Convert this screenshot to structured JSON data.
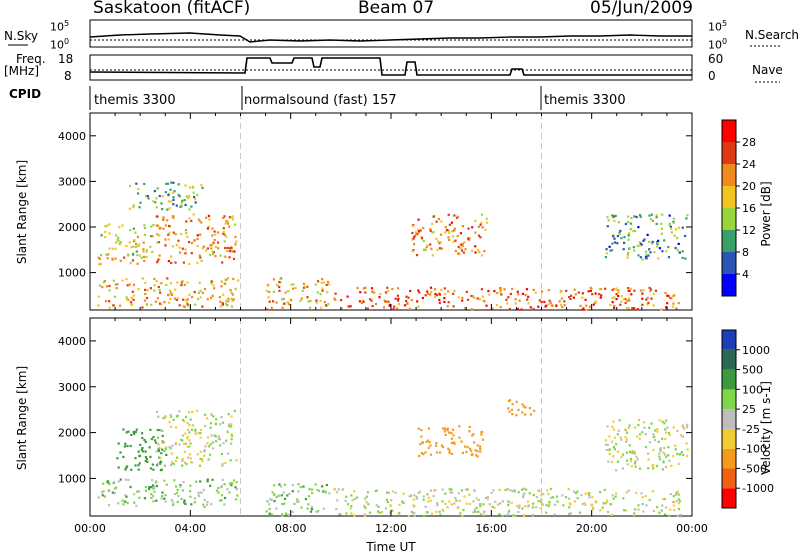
{
  "header": {
    "station": "Saskatoon (fitACF)",
    "beam": "Beam 07",
    "date": "05/Jun/2009"
  },
  "strip_labels": {
    "nsky": "N.Sky",
    "nsky_tick_top": "10^5",
    "nsky_tick_bottom": "10^0",
    "nsearch": "N.Search",
    "nsearch_tick_top": "10^5",
    "nsearch_tick_bottom": "10^0",
    "freq_line1": "Freq.",
    "freq_line2": "[MHz]",
    "freq_tick_top": "18",
    "freq_tick_bottom": "8",
    "nave": "Nave",
    "nave_tick_top": "60",
    "nave_tick_bottom": "0",
    "cpid": "CPID"
  },
  "cpid_segments": [
    {
      "name": "themis 3300",
      "start": 0,
      "end": 6
    },
    {
      "name": "normalsound (fast) 157",
      "start": 6,
      "end": 18
    },
    {
      "name": "themis 3300",
      "start": 18,
      "end": 24
    }
  ],
  "chart_data": [
    {
      "type": "heatmap",
      "name": "power",
      "xlabel": "",
      "ylabel": "Slant Range [km]",
      "xlim": [
        0,
        24
      ],
      "ylim": [
        180,
        4500
      ],
      "yticks": [
        "1000",
        "2000",
        "3000",
        "4000"
      ],
      "colorbar_label": "Power [dB]",
      "colorbar_ticks": [
        "4",
        "8",
        "12",
        "16",
        "20",
        "24",
        "28"
      ],
      "colorbar_colors": [
        "#0000ff",
        "#2a55b5",
        "#38a068",
        "#9ad63a",
        "#f2c421",
        "#f08a1c",
        "#e03a12",
        "#ff0000"
      ],
      "regions": [
        {
          "t0": 0.3,
          "t1": 5.9,
          "r0": 250,
          "r1": 900,
          "level": 20
        },
        {
          "t0": 0.3,
          "t1": 2.5,
          "r0": 1200,
          "r1": 2100,
          "level": 18
        },
        {
          "t0": 2.6,
          "t1": 5.8,
          "r0": 1200,
          "r1": 2300,
          "level": 22
        },
        {
          "t0": 1.5,
          "t1": 4.5,
          "r0": 2400,
          "r1": 3000,
          "level": 12
        },
        {
          "t0": 7.0,
          "t1": 9.5,
          "r0": 200,
          "r1": 900,
          "level": 20
        },
        {
          "t0": 9.7,
          "t1": 23.5,
          "r0": 200,
          "r1": 700,
          "level": 24
        },
        {
          "t0": 12.7,
          "t1": 15.8,
          "r0": 1400,
          "r1": 2300,
          "level": 22
        },
        {
          "t0": 20.5,
          "t1": 23.8,
          "r0": 1300,
          "r1": 2300,
          "level": 10
        }
      ]
    },
    {
      "type": "heatmap",
      "name": "velocity",
      "xlabel": "Time UT",
      "ylabel": "Slant Range [km]",
      "xlim": [
        0,
        24
      ],
      "ylim": [
        180,
        4500
      ],
      "xticks": [
        "00:00",
        "04:00",
        "08:00",
        "12:00",
        "16:00",
        "20:00",
        "00:00"
      ],
      "yticks": [
        "1000",
        "2000",
        "3000",
        "4000"
      ],
      "colorbar_label": "Velocity [m s-1]",
      "colorbar_ticks": [
        "1000",
        "500",
        "100",
        "25",
        "-25",
        "-100",
        "-500",
        "-1000"
      ],
      "colorbar_colors": [
        "#1c3fb8",
        "#2a6a55",
        "#3c9a3c",
        "#7fd64a",
        "#bdbdbd",
        "#f2cc33",
        "#f59a1a",
        "#f06010",
        "#ff0000"
      ],
      "regions": [
        {
          "t0": 0.3,
          "t1": 5.9,
          "r0": 400,
          "r1": 1000,
          "vel": 60
        },
        {
          "t0": 1.0,
          "t1": 3.0,
          "r0": 1200,
          "r1": 2100,
          "vel": 300
        },
        {
          "t0": 2.6,
          "t1": 5.8,
          "r0": 1300,
          "r1": 2500,
          "vel": 0
        },
        {
          "t0": 7.0,
          "t1": 9.5,
          "r0": 200,
          "r1": 900,
          "vel": 60
        },
        {
          "t0": 9.7,
          "t1": 23.5,
          "r0": 200,
          "r1": 800,
          "vel": 0
        },
        {
          "t0": 13.0,
          "t1": 15.7,
          "r0": 1500,
          "r1": 2200,
          "vel": -200
        },
        {
          "t0": 16.5,
          "t1": 17.7,
          "r0": 2400,
          "r1": 2800,
          "vel": -300
        },
        {
          "t0": 20.5,
          "t1": 23.8,
          "r0": 1200,
          "r1": 2300,
          "vel": 0
        }
      ]
    }
  ]
}
